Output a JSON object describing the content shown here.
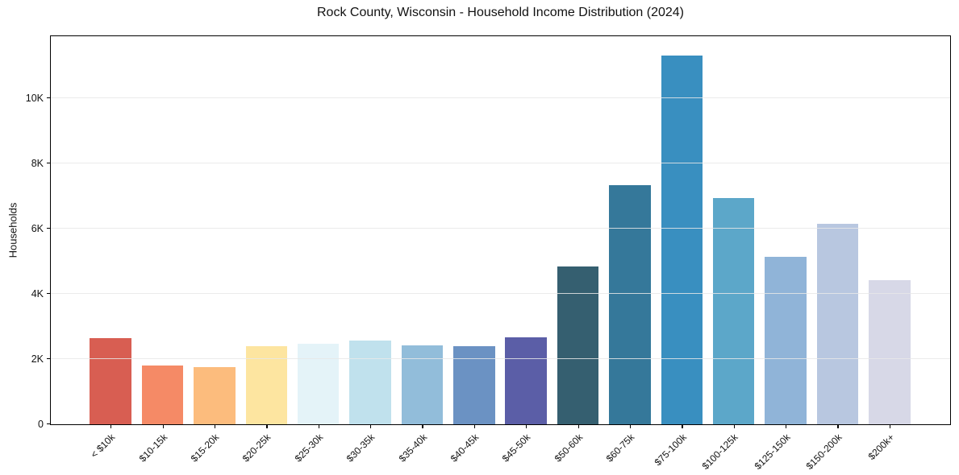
{
  "chart_data": {
    "type": "bar",
    "title": "Rock County, Wisconsin - Household Income Distribution (2024)",
    "xlabel": "",
    "ylabel": "Households",
    "categories": [
      "< $10k",
      "$10-15k",
      "$15-20k",
      "$20-25k",
      "$25-30k",
      "$30-35k",
      "$35-40k",
      "$40-45k",
      "$45-50k",
      "$50-60k",
      "$60-75k",
      "$75-100k",
      "$100-125k",
      "$125-150k",
      "$150-200k",
      "$200k+"
    ],
    "values": [
      2650,
      1800,
      1760,
      2390,
      2460,
      2580,
      2420,
      2400,
      2660,
      4850,
      7330,
      11310,
      6930,
      5130,
      6150,
      4410
    ],
    "bar_colors": [
      "#d85e52",
      "#f58a66",
      "#fcbc7d",
      "#fde5a0",
      "#e4f3f8",
      "#c0e1ed",
      "#92bdda",
      "#6b92c3",
      "#5b5ea7",
      "#355f70",
      "#35789a",
      "#398fc0",
      "#5ca7c9",
      "#90b4d8",
      "#b8c7e0",
      "#d7d8e7"
    ],
    "ylim": [
      0,
      11880
    ],
    "yticks": [
      {
        "value": 0,
        "label": "0"
      },
      {
        "value": 2000,
        "label": "2K"
      },
      {
        "value": 4000,
        "label": "4K"
      },
      {
        "value": 6000,
        "label": "6K"
      },
      {
        "value": 8000,
        "label": "8K"
      },
      {
        "value": 10000,
        "label": "10K"
      }
    ],
    "grid": "horizontal",
    "gridline_color": "#e8e8e8",
    "legend": "none",
    "frame_color": "#000000",
    "background_color": "#ffffff"
  }
}
